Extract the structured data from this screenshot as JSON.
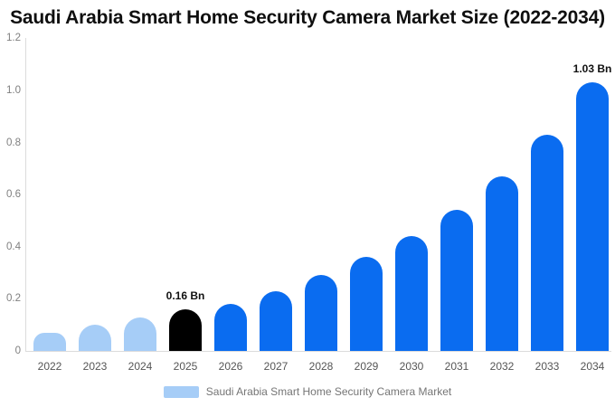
{
  "chart_data": {
    "type": "bar",
    "title": "Saudi Arabia Smart Home Security Camera Market Size (2022-2034)",
    "categories": [
      "2022",
      "2023",
      "2024",
      "2025",
      "2026",
      "2027",
      "2028",
      "2029",
      "2030",
      "2031",
      "2032",
      "2033",
      "2034"
    ],
    "values": [
      0.07,
      0.1,
      0.13,
      0.16,
      0.18,
      0.23,
      0.29,
      0.36,
      0.44,
      0.54,
      0.67,
      0.83,
      1.03
    ],
    "unit": "Bn",
    "ylim": [
      0,
      1.2
    ],
    "yticks": {
      "values": [
        0,
        0.2,
        0.4,
        0.6,
        0.8,
        1.0,
        1.2
      ],
      "labels": [
        "0",
        "0.2",
        "0.4",
        "0.6",
        "0.8",
        "1.0",
        "1.2"
      ]
    },
    "grid": false,
    "legend_position": "bottom",
    "bar_colors": [
      "#A6CDF7",
      "#A6CDF7",
      "#A6CDF7",
      "#000000",
      "#0A6CF0",
      "#0A6CF0",
      "#0A6CF0",
      "#0A6CF0",
      "#0A6CF0",
      "#0A6CF0",
      "#0A6CF0",
      "#0A6CF0",
      "#0A6CF0"
    ],
    "annotations": [
      {
        "category": "2025",
        "text": "0.16 Bn"
      },
      {
        "category": "2034",
        "text": "1.03 Bn"
      }
    ]
  },
  "legend": {
    "label": "Saudi Arabia Smart Home Security Camera Market",
    "swatch_color": "#A6CDF7"
  },
  "colors": {
    "background": "#ffffff",
    "historical_bar": "#A6CDF7",
    "highlight_bar": "#000000",
    "forecast_bar": "#0A6CF0",
    "axis_line": "#dcdcdc",
    "y_tick_text": "#7f7f7f",
    "x_tick_text": "#555555",
    "title_text": "#0f0f0f",
    "legend_text": "#757575"
  }
}
